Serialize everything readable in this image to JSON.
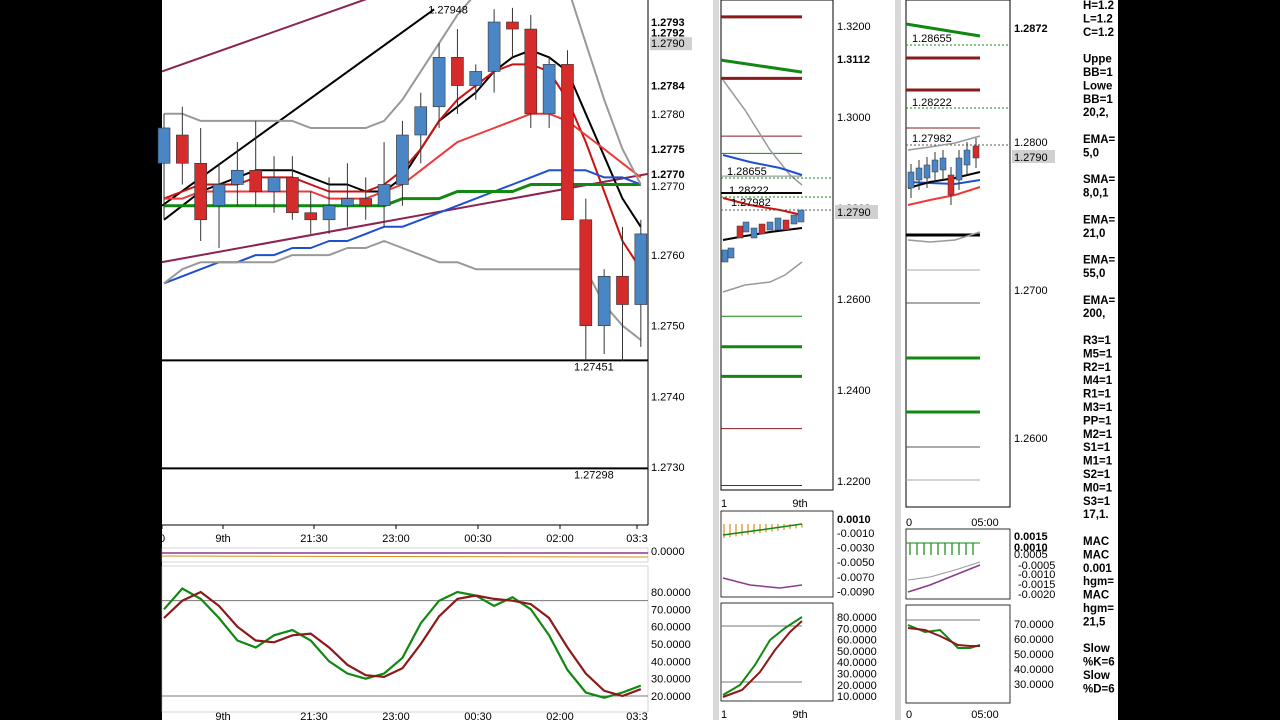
{
  "chart_data": [
    {
      "type": "candlestick",
      "panel": "main",
      "ylim": [
        1.272,
        1.28
      ],
      "price_labels": [
        {
          "text": "1.2793",
          "y": 1.2793,
          "color": "#000000",
          "bold": true
        },
        {
          "text": "1.2792",
          "y": 1.27915,
          "color": "#cc0000",
          "bold": true
        },
        {
          "text": "1.2790",
          "y": 1.279,
          "color": "#000000",
          "bold": false,
          "boxed": true
        },
        {
          "text": "1.2784",
          "y": 1.2784,
          "color": "#cc0000",
          "bold": true
        },
        {
          "text": "1.2780",
          "y": 1.278,
          "color": "#000000",
          "bold": false
        },
        {
          "text": "1.2775",
          "y": 1.2775,
          "color": "#1f4fd0",
          "bold": true
        },
        {
          "text": "1.2770",
          "y": 1.27715,
          "color": "#118811",
          "bold": true
        },
        {
          "text": "1.2770",
          "y": 1.27698,
          "color": "#000000",
          "bold": false
        },
        {
          "text": "1.2760",
          "y": 1.276,
          "color": "#000000",
          "bold": false
        },
        {
          "text": "1.2750",
          "y": 1.275,
          "color": "#000000",
          "bold": false
        },
        {
          "text": "1.2740",
          "y": 1.274,
          "color": "#000000",
          "bold": false
        },
        {
          "text": "1.2730",
          "y": 1.273,
          "color": "#000000",
          "bold": false
        }
      ],
      "annotations": [
        {
          "text": "1.27948",
          "x": 0.56,
          "y": 1.27948
        },
        {
          "text": "1.27451",
          "x": 0.86,
          "y": 1.27451
        },
        {
          "text": "1.27298",
          "x": 0.86,
          "y": 1.27298
        }
      ],
      "x_ticks": [
        "0",
        "9th",
        "21:30",
        "23:00",
        "00:30",
        "02:00",
        "03:3"
      ],
      "candles": [
        {
          "o": 1.2773,
          "h": 1.278,
          "l": 1.2765,
          "c": 1.2778
        },
        {
          "o": 1.2777,
          "h": 1.2781,
          "l": 1.277,
          "c": 1.2773
        },
        {
          "o": 1.2773,
          "h": 1.2778,
          "l": 1.2762,
          "c": 1.2765
        },
        {
          "o": 1.2767,
          "h": 1.2773,
          "l": 1.2761,
          "c": 1.277
        },
        {
          "o": 1.277,
          "h": 1.2776,
          "l": 1.2767,
          "c": 1.2772
        },
        {
          "o": 1.2772,
          "h": 1.2779,
          "l": 1.2767,
          "c": 1.2769
        },
        {
          "o": 1.2769,
          "h": 1.2774,
          "l": 1.2766,
          "c": 1.2771
        },
        {
          "o": 1.2771,
          "h": 1.2774,
          "l": 1.2765,
          "c": 1.2766
        },
        {
          "o": 1.2766,
          "h": 1.2769,
          "l": 1.2763,
          "c": 1.2765
        },
        {
          "o": 1.2765,
          "h": 1.2771,
          "l": 1.2763,
          "c": 1.2767
        },
        {
          "o": 1.2767,
          "h": 1.2773,
          "l": 1.2764,
          "c": 1.2768
        },
        {
          "o": 1.2768,
          "h": 1.2771,
          "l": 1.2765,
          "c": 1.2767
        },
        {
          "o": 1.2767,
          "h": 1.2776,
          "l": 1.2764,
          "c": 1.277
        },
        {
          "o": 1.277,
          "h": 1.2779,
          "l": 1.2767,
          "c": 1.2777
        },
        {
          "o": 1.2777,
          "h": 1.2783,
          "l": 1.2773,
          "c": 1.2781
        },
        {
          "o": 1.2781,
          "h": 1.279,
          "l": 1.2778,
          "c": 1.2788
        },
        {
          "o": 1.2788,
          "h": 1.2792,
          "l": 1.278,
          "c": 1.2784
        },
        {
          "o": 1.2784,
          "h": 1.2787,
          "l": 1.2782,
          "c": 1.2786
        },
        {
          "o": 1.2786,
          "h": 1.27948,
          "l": 1.2783,
          "c": 1.2793
        },
        {
          "o": 1.2793,
          "h": 1.2795,
          "l": 1.2788,
          "c": 1.2792
        },
        {
          "o": 1.2792,
          "h": 1.2794,
          "l": 1.2778,
          "c": 1.278
        },
        {
          "o": 1.278,
          "h": 1.2788,
          "l": 1.2778,
          "c": 1.2787
        },
        {
          "o": 1.2787,
          "h": 1.2789,
          "l": 1.2765,
          "c": 1.2765
        },
        {
          "o": 1.2765,
          "h": 1.2768,
          "l": 1.27451,
          "c": 1.275
        },
        {
          "o": 1.275,
          "h": 1.2758,
          "l": 1.2746,
          "c": 1.2757
        },
        {
          "o": 1.2757,
          "h": 1.2764,
          "l": 1.2745,
          "c": 1.2753
        },
        {
          "o": 1.2753,
          "h": 1.2765,
          "l": 1.2747,
          "c": 1.2763
        }
      ],
      "series": [
        {
          "color": "#000000",
          "width": 2,
          "values": [
            1.2765,
            1.2767,
            1.2769,
            1.277,
            1.2771,
            1.2772,
            1.2772,
            1.2772,
            1.2771,
            1.277,
            1.277,
            1.2769,
            1.2769,
            1.2771,
            1.2775,
            1.2779,
            1.2781,
            1.2783,
            1.2786,
            1.2788,
            1.2789,
            1.2788,
            1.2786,
            1.278,
            1.2774,
            1.2768,
            1.2764
          ]
        },
        {
          "color": "#cc1111",
          "width": 2,
          "values": [
            1.2768,
            1.2769,
            1.277,
            1.277,
            1.277,
            1.2771,
            1.2771,
            1.2771,
            1.277,
            1.2769,
            1.2769,
            1.2769,
            1.277,
            1.2772,
            1.2775,
            1.2779,
            1.2782,
            1.2784,
            1.2786,
            1.2787,
            1.2787,
            1.2786,
            1.2782,
            1.2776,
            1.2769,
            1.2762,
            1.2758
          ]
        },
        {
          "color": "#ee3a3a",
          "width": 2,
          "values": [
            1.2768,
            1.2768,
            1.2769,
            1.2769,
            1.2769,
            1.2769,
            1.2769,
            1.2769,
            1.2769,
            1.2768,
            1.2768,
            1.2768,
            1.2769,
            1.277,
            1.2772,
            1.2774,
            1.2776,
            1.2777,
            1.2778,
            1.2779,
            1.278,
            1.278,
            1.2779,
            1.2777,
            1.2775,
            1.2773,
            1.2771
          ]
        },
        {
          "color": "#1f4fd0",
          "width": 2,
          "values": [
            1.2756,
            1.2757,
            1.2758,
            1.2759,
            1.2759,
            1.276,
            1.276,
            1.2761,
            1.2761,
            1.2762,
            1.2762,
            1.2763,
            1.2764,
            1.2764,
            1.2765,
            1.2766,
            1.2767,
            1.2768,
            1.2769,
            1.277,
            1.2771,
            1.2772,
            1.2772,
            1.2772,
            1.2771,
            1.2771,
            1.277
          ]
        },
        {
          "color": "#118811",
          "width": 3,
          "values": [
            1.2767,
            1.2767,
            1.2767,
            1.2767,
            1.2767,
            1.2767,
            1.2767,
            1.2767,
            1.2767,
            1.2767,
            1.2767,
            1.2767,
            1.2767,
            1.2768,
            1.2768,
            1.2768,
            1.2769,
            1.2769,
            1.2769,
            1.2769,
            1.277,
            1.277,
            1.277,
            1.277,
            1.277,
            1.277,
            1.277
          ]
        },
        {
          "color": "#999999",
          "width": 2,
          "values": [
            1.278,
            1.278,
            1.2779,
            1.2779,
            1.2779,
            1.2779,
            1.2779,
            1.2779,
            1.2778,
            1.2778,
            1.2778,
            1.2778,
            1.2779,
            1.2782,
            1.2786,
            1.279,
            1.2794,
            1.2797,
            1.2799,
            1.28,
            1.2801,
            1.2801,
            1.2798,
            1.279,
            1.2782,
            1.2775,
            1.277
          ]
        },
        {
          "color": "#999999",
          "width": 2,
          "values": [
            1.2756,
            1.2758,
            1.2759,
            1.2759,
            1.2759,
            1.2759,
            1.2759,
            1.276,
            1.276,
            1.276,
            1.2761,
            1.2761,
            1.2762,
            1.2761,
            1.276,
            1.2759,
            1.2759,
            1.2758,
            1.2758,
            1.2758,
            1.2758,
            1.2758,
            1.2758,
            1.2758,
            1.2753,
            1.275,
            1.2748
          ]
        }
      ],
      "trend_lines": [
        {
          "color": "#8b2252",
          "x1": 0.0,
          "y1": 1.2786,
          "x2": 0.78,
          "y2": 1.2805
        },
        {
          "color": "#8b2252",
          "x1": 0.0,
          "y1": 1.2759,
          "x2": 1.0,
          "y2": 1.27715
        },
        {
          "color": "#000000",
          "x1": 0.0,
          "y1": 1.2767,
          "x2": 0.56,
          "y2": 1.27948
        }
      ],
      "hlines": [
        {
          "y": 1.27451,
          "color": "#000000"
        },
        {
          "y": 1.27298,
          "color": "#000000"
        }
      ],
      "dashed_hline": 1.28
    },
    {
      "type": "line",
      "panel": "main-stochastic",
      "ylim": [
        10,
        90
      ],
      "y_ticks": [
        "80.0000",
        "70.0000",
        "60.0000",
        "50.0000",
        "40.0000",
        "30.0000",
        "20.0000"
      ],
      "x_ticks": [
        "9th",
        "21:30",
        "23:00",
        "00:30",
        "02:00",
        "03:3"
      ],
      "levels": [
        75,
        20
      ],
      "series": [
        {
          "name": "%K",
          "color": "#118811",
          "values": [
            70,
            82,
            76,
            65,
            52,
            48,
            55,
            58,
            52,
            40,
            33,
            30,
            33,
            42,
            62,
            75,
            80,
            78,
            72,
            77,
            70,
            55,
            35,
            22,
            19,
            22,
            26
          ]
        },
        {
          "name": "%D",
          "color": "#8b1a1a",
          "values": [
            65,
            75,
            80,
            72,
            60,
            52,
            51,
            55,
            56,
            48,
            38,
            32,
            31,
            36,
            50,
            66,
            76,
            78,
            76,
            75,
            73,
            65,
            48,
            33,
            23,
            20,
            24
          ]
        }
      ]
    },
    {
      "type": "candlestick",
      "panel": "mid",
      "ylim": [
        1.215,
        1.328
      ],
      "y_ticks": [
        "1.3200",
        "1.3000",
        "1.2800",
        "1.2600",
        "1.2400",
        "1.2200"
      ],
      "price_labels": [
        {
          "text": "1.3112",
          "y": 1.3112,
          "color": "#118811",
          "bold": true
        },
        {
          "text": "1.2790",
          "y": 1.279,
          "color": "#000000",
          "bold": false,
          "boxed": true
        }
      ],
      "annotations": [
        "1.28655",
        "1.28222",
        "1.27982"
      ],
      "x_ticks": [
        "1",
        "9th"
      ]
    },
    {
      "type": "bar",
      "panel": "mid-macd",
      "y_ticks": [
        "0.0010",
        "-0.0010",
        "-0.0030",
        "-0.0050",
        "-0.0070",
        "-0.0090"
      ]
    },
    {
      "type": "line",
      "panel": "mid-stochastic",
      "y_ticks": [
        "80.0000",
        "70.0000",
        "60.0000",
        "50.0000",
        "40.0000",
        "30.0000",
        "20.0000",
        "10.0000"
      ]
    },
    {
      "type": "candlestick",
      "panel": "right",
      "y_ticks": [
        "1.2800",
        "1.2700",
        "1.2600"
      ],
      "price_labels": [
        {
          "text": "1.2872",
          "color": "#118811",
          "bold": true
        },
        {
          "text": "1.2790",
          "color": "#000000",
          "bold": false,
          "boxed": true
        }
      ],
      "annotations": [
        "1.28655",
        "1.28222",
        "1.27982"
      ],
      "x_ticks": [
        "0",
        "05:00"
      ]
    },
    {
      "type": "bar",
      "panel": "right-macd",
      "y_ticks": [
        "0.0015",
        "0.0010",
        "0.0005",
        "-0.0005",
        "-0.0010",
        "-0.0015",
        "-0.0020"
      ]
    },
    {
      "type": "line",
      "panel": "right-stochastic",
      "y_ticks": [
        "70.0000",
        "60.0000",
        "50.0000",
        "40.0000",
        "30.0000"
      ],
      "x_ticks": [
        "0",
        "05:00"
      ]
    }
  ],
  "side_panel": {
    "lines": [
      "H=1.2",
      "L=1.2",
      "C=1.2",
      "",
      "Uppe",
      "BB=1",
      "Lowe",
      "BB=1",
      "20,2,",
      "",
      "EMA=",
      "5,0",
      "",
      "SMA=",
      "8,0,1",
      "",
      "EMA=",
      "21,0",
      "",
      "EMA=",
      "55,0",
      "",
      "EMA=",
      "200,",
      "",
      "R3=1",
      "M5=1",
      "R2=1",
      "M4=1",
      "R1=1",
      "M3=1",
      "PP=1",
      "M2=1",
      "S1=1",
      "M1=1",
      "S2=1",
      "M0=1",
      "S3=1",
      "17,1.",
      "",
      "MAC",
      "MAC",
      "0.001",
      "hgm=",
      "MAC",
      "hgm=",
      "21,5",
      "",
      "Slow",
      "%K=6",
      "Slow",
      "%D=6"
    ]
  }
}
